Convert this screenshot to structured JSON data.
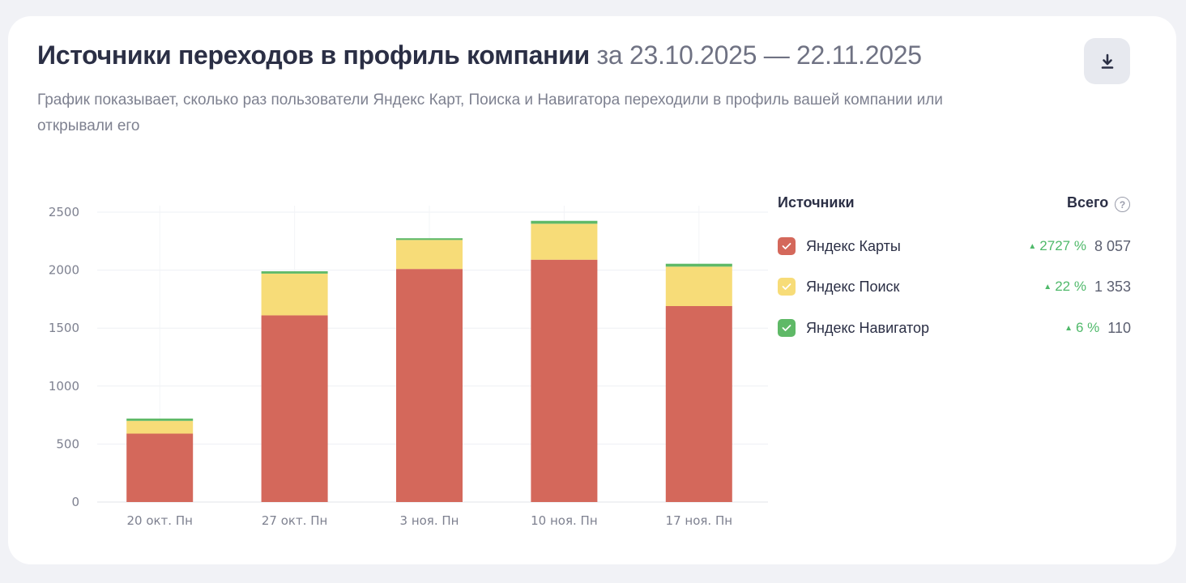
{
  "header": {
    "title": "Источники переходов в профиль компании",
    "period": "за 23.10.2025 — 22.11.2025",
    "subtitle": "График показывает, сколько раз пользователи Яндекс Карт, Поиска и Навигатора переходили в профиль вашей компании или открывали его",
    "download_icon": "download-icon"
  },
  "legend": {
    "sources_label": "Источники",
    "total_label": "Всего",
    "help_icon": "question-icon",
    "help_glyph": "?",
    "items": [
      {
        "name": "Яндекс Карты",
        "growth": "2727 %",
        "total": "8 057",
        "color": "#d4685b",
        "checked": true
      },
      {
        "name": "Яндекс Поиск",
        "growth": "22 %",
        "total": "1 353",
        "color": "#f7dc78",
        "checked": true
      },
      {
        "name": "Яндекс Навигатор",
        "growth": "6 %",
        "total": "110",
        "color": "#5fb967",
        "checked": true
      }
    ],
    "growth_arrow": "▲"
  },
  "colors": {
    "growth": "#4fb96a",
    "grid": "#eef0f4"
  },
  "chart_data": {
    "type": "bar",
    "stacked": true,
    "categories": [
      "20 окт. Пн",
      "27 окт. Пн",
      "3 ноя. Пн",
      "10 ноя. Пн",
      "17 ноя. Пн"
    ],
    "series": [
      {
        "name": "Яндекс Карты",
        "color": "#d4685b",
        "values": [
          590,
          1610,
          2010,
          2090,
          1690
        ]
      },
      {
        "name": "Яндекс Поиск",
        "color": "#f7dc78",
        "values": [
          110,
          360,
          250,
          310,
          340
        ]
      },
      {
        "name": "Яндекс Навигатор",
        "color": "#5fb967",
        "values": [
          20,
          20,
          15,
          25,
          25
        ]
      }
    ],
    "yticks": [
      "0",
      "500",
      "1000",
      "1500",
      "2000",
      "2500"
    ],
    "ylim": [
      0,
      2500
    ],
    "grid": true
  }
}
